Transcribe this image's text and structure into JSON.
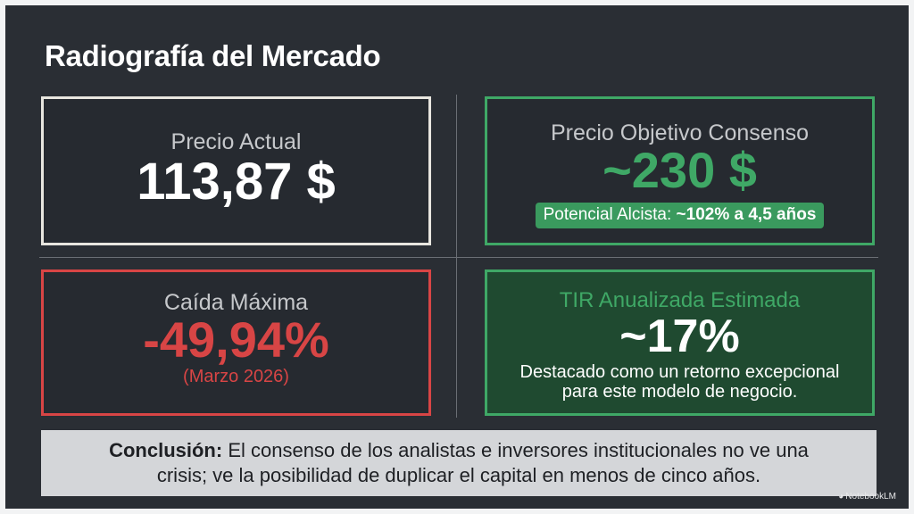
{
  "title": "Radiografía del Mercado",
  "cards": {
    "price": {
      "label": "Precio Actual",
      "value": "113,87 $"
    },
    "target": {
      "label": "Precio Objetivo Consenso",
      "value": "~230 $",
      "pill_prefix": "Potencial Alcista:",
      "pill_bold": "~102% a 4,5 años"
    },
    "drop": {
      "label": "Caída Máxima",
      "value": "-49,94%",
      "sub": "(Marzo 2026)"
    },
    "tir": {
      "label": "TIR Anualizada Estimada",
      "value": "~17%",
      "desc_line1": "Destacado como un retorno excepcional",
      "desc_line2": "para este modelo de negocio."
    }
  },
  "conclusion": {
    "bold": "Conclusión:",
    "line1": "El consenso de los analistas e inversores institucionales no ve una",
    "line2": "crisis; ve la posibilidad de duplicar el capital en menos de cinco años."
  },
  "brand": {
    "icon": "notebooklm-icon",
    "label": "NotebookLM"
  },
  "colors": {
    "background": "#2a2e34",
    "positive": "#3fa866",
    "negative": "#d84545",
    "neutral_border": "#e8e6df",
    "conclusion_bg": "#d4d6d9"
  }
}
